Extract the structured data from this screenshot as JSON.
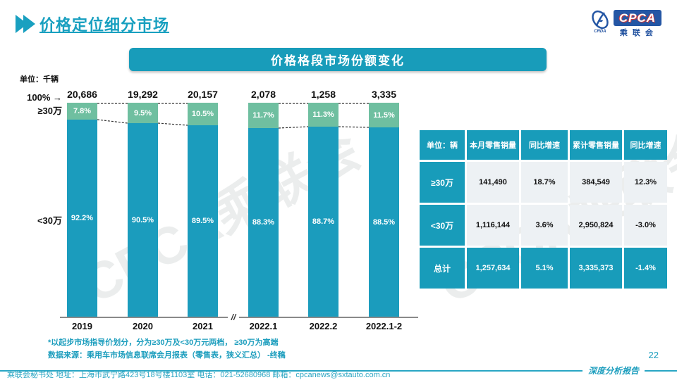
{
  "colors": {
    "accent": "#189cba",
    "green": "#6fbfa0",
    "teal_bar": "#1b9cbd",
    "logo_blue": "#2456a4",
    "logo_red": "#d03a3a"
  },
  "header": {
    "title": "价格定位细分市场"
  },
  "logo": {
    "cpca": "CPCA",
    "sub": "乘联会",
    "emblem_caption": "CRDA"
  },
  "banner": {
    "text": "价格格段市场份额变化"
  },
  "chart_labels": {
    "unit": "单位：千辆",
    "hundred": "100% →",
    "top_segment": "≥30万",
    "bottom_segment": "<30万"
  },
  "chart_data": {
    "type": "bar",
    "stacked": true,
    "title": "价格格段市场份额变化",
    "unit": "单位：千辆",
    "categories": [
      "2019",
      "2020",
      "2021",
      "2022.1",
      "2022.2",
      "2022.1-2"
    ],
    "totals": [
      "20,686",
      "19,292",
      "20,157",
      "2,078",
      "1,258",
      "3,335"
    ],
    "series": [
      {
        "name": "≥30万",
        "values": [
          7.8,
          9.5,
          10.5,
          11.7,
          11.3,
          11.5
        ],
        "labels": [
          "7.8%",
          "9.5%",
          "10.5%",
          "11.7%",
          "11.3%",
          "11.5%"
        ],
        "color": "#6fbfa0"
      },
      {
        "name": "<30万",
        "values": [
          92.2,
          90.5,
          89.5,
          88.3,
          88.7,
          88.5
        ],
        "labels": [
          "92.2%",
          "90.5%",
          "89.5%",
          "88.3%",
          "88.7%",
          "88.5%"
        ],
        "color": "#1b9cbd"
      }
    ],
    "ylim": [
      0,
      100
    ],
    "axis_break_between": [
      "2021",
      "2022.1"
    ],
    "legend_position": "left-axis",
    "grid": false
  },
  "watermark": {
    "text": "CPCA乘联会"
  },
  "table": {
    "unit_header": "单位：辆",
    "headers": [
      "本月零售销量",
      "同比增速",
      "累计零售销量",
      "同比增速"
    ],
    "rows": [
      {
        "label": "≥30万",
        "cells": [
          "141,490",
          "18.7%",
          "384,549",
          "12.3%"
        ],
        "highlight": false
      },
      {
        "label": "<30万",
        "cells": [
          "1,116,144",
          "3.6%",
          "2,950,824",
          "-3.0%"
        ],
        "highlight": false
      },
      {
        "label": "总计",
        "cells": [
          "1,257,634",
          "5.1%",
          "3,335,373",
          "-1.4%"
        ],
        "highlight": true
      }
    ]
  },
  "notes": {
    "line1": "*以起步市场指导价划分，分为≥30万及<30万元两档， ≥30万为高端",
    "line2": "数据来源：乘用车市场信息联席会月报表（零售表，狭义汇总） -终稿"
  },
  "footer": {
    "contact": "乘联会秘书处   地址：上海市武宁路423号18号楼1103室  电话：021-52680968   邮箱：cpcanews@sxtauto.com.cn",
    "report_label": "深度分析报告",
    "page": "22"
  }
}
